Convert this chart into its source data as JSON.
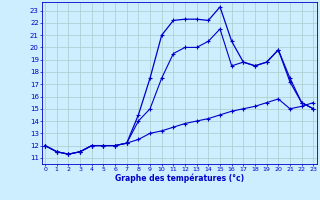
{
  "background_color": "#cceeff",
  "grid_color": "#aacccc",
  "line_color": "#0000cc",
  "xlim": [
    -0.3,
    23.3
  ],
  "ylim": [
    10.5,
    23.7
  ],
  "xticks": [
    0,
    1,
    2,
    3,
    4,
    5,
    6,
    7,
    8,
    9,
    10,
    11,
    12,
    13,
    14,
    15,
    16,
    17,
    18,
    19,
    20,
    21,
    22,
    23
  ],
  "yticks": [
    11,
    12,
    13,
    14,
    15,
    16,
    17,
    18,
    19,
    20,
    21,
    22,
    23
  ],
  "hours": [
    0,
    1,
    2,
    3,
    4,
    5,
    6,
    7,
    8,
    9,
    10,
    11,
    12,
    13,
    14,
    15,
    16,
    17,
    18,
    19,
    20,
    21,
    22,
    23
  ],
  "temp_actual": [
    12.0,
    11.5,
    11.3,
    11.5,
    12.0,
    12.0,
    12.0,
    12.2,
    14.5,
    17.5,
    21.0,
    22.2,
    22.3,
    22.3,
    22.2,
    23.3,
    20.5,
    18.8,
    18.5,
    18.8,
    19.8,
    17.2,
    15.5,
    15.0
  ],
  "temp_min": [
    12.0,
    11.5,
    11.3,
    11.5,
    12.0,
    12.0,
    12.0,
    12.2,
    12.5,
    13.0,
    13.2,
    13.5,
    13.8,
    14.0,
    14.2,
    14.5,
    14.8,
    15.0,
    15.2,
    15.5,
    15.8,
    15.0,
    15.2,
    15.5
  ],
  "temp_max": [
    12.0,
    11.5,
    11.3,
    11.5,
    12.0,
    12.0,
    12.0,
    12.2,
    14.0,
    15.0,
    17.5,
    19.5,
    20.0,
    20.0,
    20.5,
    21.5,
    18.5,
    18.8,
    18.5,
    18.8,
    19.8,
    17.5,
    15.5,
    15.0
  ],
  "xlabel": "Graphe des températures (°c)"
}
